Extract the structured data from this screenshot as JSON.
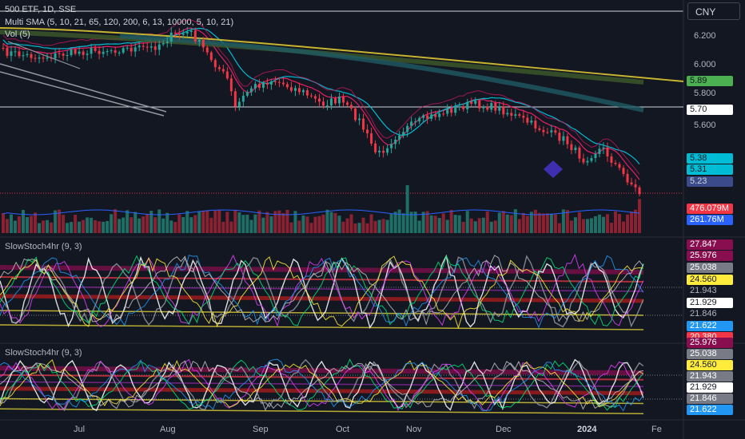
{
  "header": {
    "symbol_line": "500 ETF, 1D, SSE",
    "sma_line": "Multi SMA (5, 10, 21, 65, 120, 200, 6, 13, 10000, 5, 10, 21)",
    "vol_line": "Vol (5)",
    "currency": "CNY"
  },
  "price_axis": {
    "ticks": [
      "6.200",
      "6.000",
      "5.800",
      "5.600"
    ]
  },
  "price_badges": [
    {
      "value": "5.89",
      "bg": "#4caf50",
      "fg": "#131722"
    },
    {
      "value": "5.70",
      "bg": "#ffffff",
      "fg": "#131722"
    },
    {
      "value": "5.38",
      "bg": "#00bcd4",
      "fg": "#131722"
    },
    {
      "value": "5.31",
      "bg": "#00bcd4",
      "fg": "#131722"
    },
    {
      "value": "5.23",
      "bg": "#3a4a8a",
      "fg": "#d1d4dc"
    }
  ],
  "volume_badges": [
    {
      "value": "476.079M",
      "bg": "#f23645",
      "fg": "#ffffff"
    },
    {
      "value": "261.76M",
      "bg": "#2962ff",
      "fg": "#ffffff"
    }
  ],
  "panes": [
    {
      "title": "SlowStoch4hr (9, 3)",
      "badges": [
        {
          "value": "27.847",
          "bg": "#880e4f",
          "fg": "#ffffff"
        },
        {
          "value": "25.976",
          "bg": "#880e4f",
          "fg": "#ffffff"
        },
        {
          "value": "25.038",
          "bg": "#787b86",
          "fg": "#ffffff"
        },
        {
          "value": "24.560",
          "bg": "#ffeb3b",
          "fg": "#131722"
        },
        {
          "value": "21.943",
          "bg": "#131722",
          "fg": "#b2b5be"
        },
        {
          "value": "21.929",
          "bg": "#ffffff",
          "fg": "#131722"
        },
        {
          "value": "21.846",
          "bg": "#131722",
          "fg": "#b2b5be"
        },
        {
          "value": "21.622",
          "bg": "#2196f3",
          "fg": "#ffffff"
        },
        {
          "value": "20.380",
          "bg": "#f23645",
          "fg": "#ffffff"
        }
      ]
    },
    {
      "title": "SlowStoch4hr (9, 3)",
      "badges": [
        {
          "value": "25.976",
          "bg": "#880e4f",
          "fg": "#ffffff"
        },
        {
          "value": "25.038",
          "bg": "#787b86",
          "fg": "#ffffff"
        },
        {
          "value": "24.560",
          "bg": "#ffeb3b",
          "fg": "#131722"
        },
        {
          "value": "21.943",
          "bg": "#787b86",
          "fg": "#ffffff"
        },
        {
          "value": "21.929",
          "bg": "#ffffff",
          "fg": "#131722"
        },
        {
          "value": "21.846",
          "bg": "#787b86",
          "fg": "#ffffff"
        },
        {
          "value": "21.622",
          "bg": "#2196f3",
          "fg": "#ffffff"
        }
      ]
    }
  ],
  "time_axis": [
    "Jul",
    "Aug",
    "Sep",
    "Oct",
    "Nov",
    "Dec",
    "2024",
    "Fe"
  ],
  "colors": {
    "background": "#131722",
    "up": "#26a69a",
    "down": "#f23645",
    "sma_yellow": "#c9b430",
    "sma_green": "#4caf50",
    "sma_cyan": "#00bcd4",
    "sma_pink": "#e91e63"
  }
}
